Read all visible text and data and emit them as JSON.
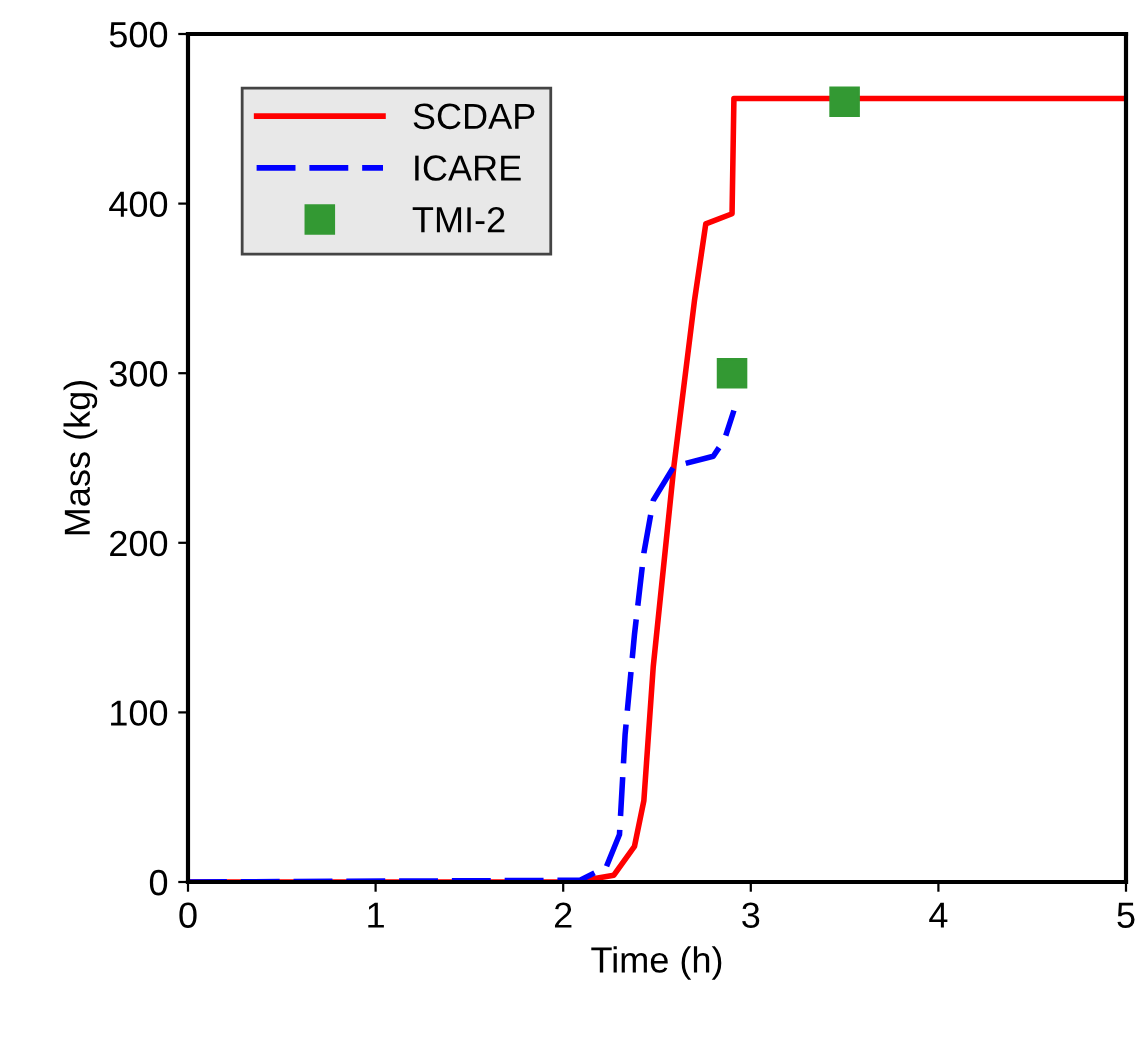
{
  "chart_data": {
    "type": "line",
    "xlabel": "Time (h)",
    "ylabel": "Mass (kg)",
    "xlim": [
      0,
      5
    ],
    "ylim": [
      0,
      500
    ],
    "xticks": [
      0,
      1,
      2,
      3,
      4,
      5
    ],
    "yticks": [
      0,
      100,
      200,
      300,
      400,
      500
    ],
    "grid": false,
    "legend": "top left",
    "series": [
      {
        "name": "SCDAP",
        "color": "#ff0000",
        "line_style": "solid",
        "x": [
          0,
          2.06,
          2.27,
          2.38,
          2.43,
          2.48,
          2.59,
          2.7,
          2.76,
          2.9,
          2.91,
          5
        ],
        "values": [
          0,
          0,
          4,
          21,
          48,
          127,
          245,
          343,
          388,
          394,
          462,
          462
        ]
      },
      {
        "name": "ICARE",
        "color": "#0000ff",
        "line_style": "dashed",
        "x": [
          0,
          2.09,
          2.23,
          2.3,
          2.33,
          2.38,
          2.43,
          2.48,
          2.59,
          2.8,
          2.86,
          2.91
        ],
        "values": [
          0,
          1,
          9,
          28,
          87,
          146,
          194,
          225,
          245,
          251,
          261,
          278
        ]
      },
      {
        "name": "TMI-2",
        "type": "scatter",
        "marker": "square",
        "color": "#339933",
        "x": [
          2.9,
          3.5
        ],
        "values": [
          300,
          460
        ]
      }
    ]
  }
}
